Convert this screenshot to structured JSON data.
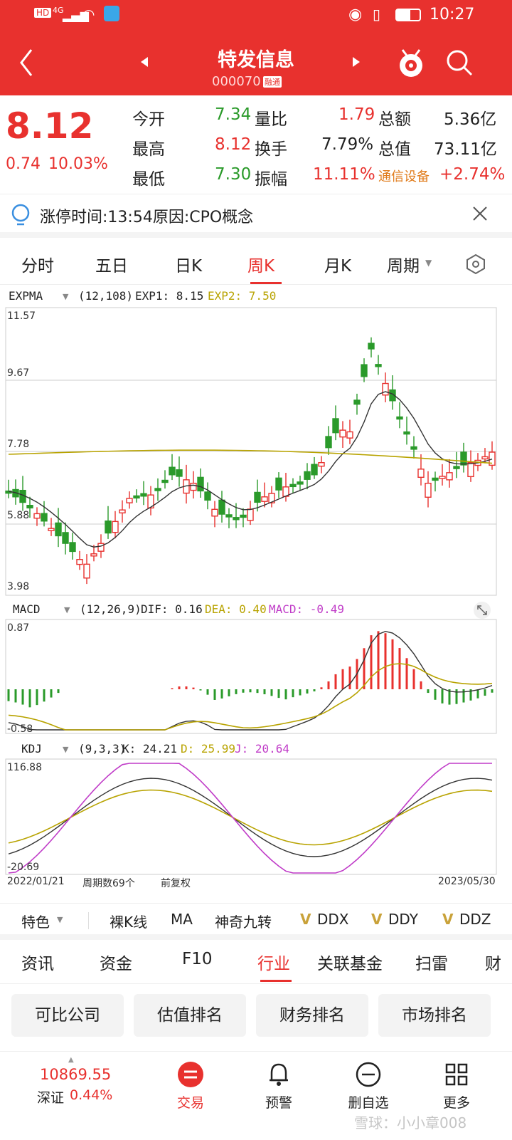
{
  "status": {
    "time": "10:27",
    "network": "HD",
    "signal": "4G"
  },
  "nav": {
    "title": "特发信息",
    "code": "000070",
    "code_badge": "融通"
  },
  "quote": {
    "price": "8.12",
    "change": "0.74",
    "change_pct": "10.03%",
    "labels": [
      "今开",
      "最高",
      "最低",
      "量比",
      "换手",
      "振幅",
      "总额",
      "总值"
    ],
    "open": "7.34",
    "high": "8.12",
    "low": "7.30",
    "vol_ratio": "1.79",
    "turnover": "7.79%",
    "amplitude": "11.11%",
    "amount": "5.36亿",
    "mkt_value": "73.11亿",
    "sector": "通信设备",
    "sector_pct": "+2.74%"
  },
  "notice": {
    "text": "涨停时间:13:54原因:CPO概念"
  },
  "tabs": [
    "分时",
    "五日",
    "日K",
    "周K",
    "月K",
    "周期"
  ],
  "active_tab": "周K",
  "expma": {
    "name": "EXPMA",
    "params": "(12,108)",
    "exp1": "EXP1: 8.15",
    "exp2": "EXP2: 7.50",
    "ticks": [
      "11.57",
      "9.67",
      "7.78",
      "5.88",
      "3.98"
    ]
  },
  "macd": {
    "name": "MACD",
    "params": "(12,26,9)",
    "dif": "DIF: 0.16",
    "dea": "DEA: 0.40",
    "macd": "MACD: -0.49",
    "ticks": [
      "0.87",
      "-0.58"
    ]
  },
  "kdj": {
    "name": "KDJ",
    "params": "(9,3,3)",
    "k": "K: 24.21",
    "d": "D: 25.99",
    "j": "J: 20.64",
    "ticks": [
      "116.88",
      "-20.69"
    ]
  },
  "footer_axis": {
    "start": "2022/01/21",
    "count": "周期数69个",
    "adjust": "前复权",
    "end": "2023/05/30"
  },
  "features": [
    "特色",
    "裸K线",
    "MA",
    "神奇九转",
    "DDX",
    "DDY",
    "DDZ"
  ],
  "bottom_tabs": [
    "资讯",
    "资金",
    "F10",
    "行业",
    "关联基金",
    "扫雷",
    "财"
  ],
  "active_bottom_tab": "行业",
  "grid_buttons": [
    "可比公司",
    "估值排名",
    "财务排名",
    "市场排名"
  ],
  "bottom_nav": {
    "index_value": "10869.55",
    "index_name": "深证",
    "index_pct": "0.44%",
    "items": [
      "交易",
      "预警",
      "删自选",
      "更多"
    ]
  },
  "watermark": "雪球：小小章008",
  "colors": {
    "red": "#e8312e",
    "green": "#2a9a2a",
    "gold": "#b8a300",
    "purple": "#c03cc8"
  }
}
